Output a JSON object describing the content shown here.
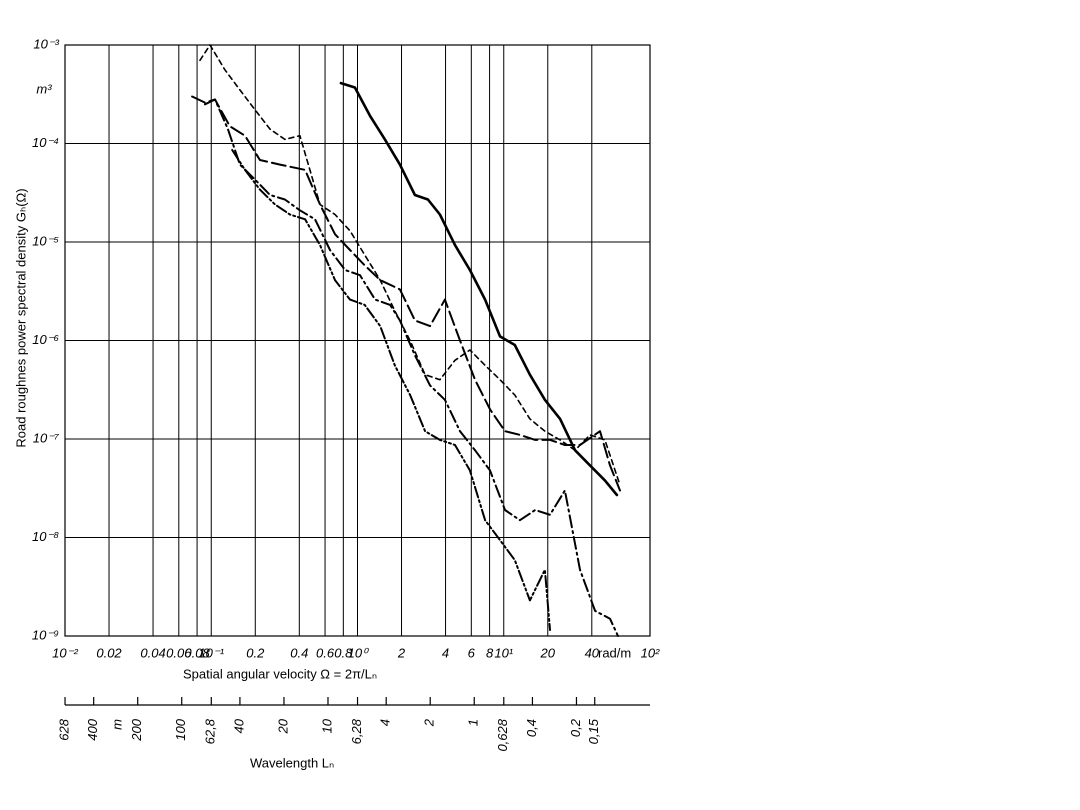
{
  "chart_data": {
    "type": "line",
    "xscale": "log",
    "yscale": "log",
    "grid": true,
    "x_label": "Spatial angular velocity  Ω = 2π/Lₙ",
    "x_unit": "rad/m",
    "y_label": "Road roughnes power spectral density Gₕ(Ω)",
    "y_unit": "m³",
    "xlim": [
      0.01,
      100
    ],
    "ylim": [
      1e-09,
      0.001
    ],
    "xticks": [
      {
        "value": 0.01,
        "label": "10⁻²"
      },
      0.02,
      0.04,
      0.06,
      0.08,
      {
        "value": 0.1,
        "label": "10⁻¹"
      },
      0.2,
      0.4,
      0.6,
      0.8,
      {
        "value": 1,
        "label": "10⁰"
      },
      2,
      4,
      6,
      8,
      {
        "value": 10,
        "label": "10¹"
      },
      20,
      40,
      {
        "value": 100,
        "label": "10²"
      }
    ],
    "yticks": [
      {
        "value": 1e-09,
        "label": "10⁻⁹"
      },
      {
        "value": 1e-08,
        "label": "10⁻⁸"
      },
      {
        "value": 1e-07,
        "label": "10⁻⁷"
      },
      {
        "value": 1e-06,
        "label": "10⁻⁶"
      },
      {
        "value": 1e-05,
        "label": "10⁻⁵"
      },
      {
        "value": 0.0001,
        "label": "10⁻⁴"
      },
      {
        "value": 0.001,
        "label": "10⁻³"
      }
    ],
    "wavelength_axis": {
      "label": "Wavelength Lₙ",
      "unit": "m",
      "ticks": [
        628,
        400,
        200,
        100,
        {
          "value": 62.8,
          "label": "62,8"
        },
        40,
        20,
        10,
        {
          "value": 6.28,
          "label": "6,28"
        },
        4,
        2,
        1,
        {
          "value": 0.628,
          "label": "0,628"
        },
        {
          "value": 0.4,
          "label": "0,4"
        },
        {
          "value": 0.2,
          "label": "0,2"
        },
        {
          "value": 0.15,
          "label": "0,15"
        }
      ]
    },
    "series": [
      {
        "color": "#000000",
        "dash": "solid",
        "width": 2.6,
        "x": [
          0.77,
          0.96,
          1.22,
          1.54,
          1.95,
          2.47,
          3.03,
          3.66,
          4.64,
          5.87,
          7.45,
          9.42,
          11.9,
          15.1,
          19.1,
          24.3,
          30.7,
          38.9,
          49.2,
          59.4
        ],
        "values": [
          0.00041,
          0.00037,
          0.00019,
          0.00011,
          6.1e-05,
          3e-05,
          2.7e-05,
          1.9e-05,
          9.3e-06,
          5.2e-06,
          2.6e-06,
          1.1e-06,
          9e-07,
          4.5e-07,
          2.5e-07,
          1.6e-07,
          7.7e-08,
          5.4e-08,
          3.8e-08,
          2.7e-08
        ]
      },
      {
        "color": "#000000",
        "dash": "short-dash",
        "width": 1.6,
        "x": [
          0.0838,
          0.098,
          0.124,
          0.157,
          0.199,
          0.252,
          0.319,
          0.404,
          0.473,
          0.554,
          0.702,
          0.889,
          1.12,
          1.43,
          1.8,
          2.29,
          2.9,
          3.66,
          4.64,
          5.87,
          7.45,
          9.42,
          11.9,
          15.1,
          19.1,
          24.3,
          30.7,
          38.9,
          49.2,
          62.4
        ],
        "values": [
          0.0007,
          0.001,
          0.00056,
          0.00035,
          0.00022,
          0.00014,
          0.00011,
          0.00012,
          5.4e-05,
          2.4e-05,
          1.9e-05,
          1.3e-05,
          7.4e-06,
          4.1e-06,
          2e-06,
          1e-06,
          4.5e-07,
          4e-07,
          6.3e-07,
          8e-07,
          5.6e-07,
          4e-07,
          2.8e-07,
          1.6e-07,
          1.2e-07,
          9.8e-08,
          7.7e-08,
          1.1e-07,
          9.8e-08,
          3.4e-08
        ]
      },
      {
        "color": "#000000",
        "dash": "long-dash",
        "width": 2,
        "x": [
          0.074,
          0.0906,
          0.106,
          0.134,
          0.17,
          0.215,
          0.295,
          0.438,
          0.554,
          0.702,
          0.889,
          1.12,
          1.43,
          1.95,
          2.47,
          3.13,
          3.96,
          5.02,
          6.36,
          8.05,
          10.2,
          12.9,
          16.4,
          20.7,
          26.2,
          33.2,
          45.5,
          53.3,
          62.4
        ],
        "values": [
          0.0003,
          0.00026,
          0.00028,
          0.00015,
          0.00012,
          6.8e-05,
          6.1e-05,
          5.4e-05,
          2.4e-05,
          1.2e-05,
          8.3e-06,
          5.8e-06,
          4.1e-06,
          3.3e-06,
          1.6e-06,
          1.4e-06,
          2.6e-06,
          1e-06,
          4e-07,
          2e-07,
          1.2e-07,
          1.1e-07,
          9.8e-08,
          9.8e-08,
          8.7e-08,
          8.7e-08,
          1.2e-07,
          5.4e-08,
          3e-08
        ]
      },
      {
        "color": "#000000",
        "dash": "dash-dot",
        "width": 2,
        "x": [
          0.0906,
          0.106,
          0.13,
          0.157,
          0.199,
          0.252,
          0.319,
          0.404,
          0.512,
          0.649,
          0.822,
          1.04,
          1.32,
          1.67,
          1.95,
          2.47,
          3.13,
          3.96,
          5.02,
          6.36,
          8.05,
          10.2,
          12.9,
          16.4,
          20.7,
          26.2,
          33.2,
          42.1,
          53.3,
          60.4
        ],
        "values": [
          0.00025,
          0.00028,
          0.00014,
          6.1e-05,
          4.3e-05,
          3e-05,
          2.7e-05,
          2.1e-05,
          1.7e-05,
          8.3e-06,
          5.2e-06,
          4.6e-06,
          2.6e-06,
          2.3e-06,
          1.6e-06,
          7.1e-07,
          3.5e-07,
          2.5e-07,
          1.2e-07,
          7.7e-08,
          4.8e-08,
          1.9e-08,
          1.5e-08,
          1.9e-08,
          1.7e-08,
          3e-08,
          4.7e-09,
          1.8e-09,
          1.5e-09,
          1e-09
        ]
      },
      {
        "color": "#000000",
        "dash": "dash-dot-dot",
        "width": 2,
        "x": [
          0.139,
          0.17,
          0.215,
          0.273,
          0.345,
          0.438,
          0.554,
          0.702,
          0.889,
          1.12,
          1.43,
          1.8,
          2.29,
          2.9,
          3.66,
          4.64,
          5.87,
          7.45,
          9.42,
          11.9,
          15.1,
          19.1,
          20.7
        ],
        "values": [
          8.6e-05,
          5.4e-05,
          3.4e-05,
          2.4e-05,
          1.9e-05,
          1.7e-05,
          9.3e-06,
          4.1e-06,
          2.6e-06,
          2.3e-06,
          1.4e-06,
          5.6e-07,
          2.8e-07,
          1.2e-07,
          9.8e-08,
          8.7e-08,
          4.8e-08,
          1.5e-08,
          9.4e-09,
          5.9e-09,
          2.3e-09,
          4.7e-09,
          1.15e-09
        ]
      }
    ]
  }
}
